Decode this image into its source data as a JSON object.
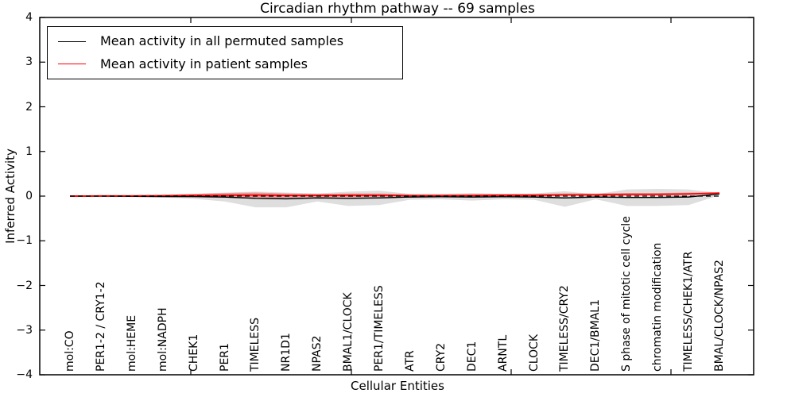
{
  "figure": {
    "title": "Circadian rhythm pathway -- 69 samples",
    "xlabel": "Cellular Entities",
    "ylabel": "Inferred Activity"
  },
  "legend": {
    "items": [
      {
        "label": "Mean activity in all permuted samples",
        "color": "#000000"
      },
      {
        "label": "Mean activity in patient samples",
        "color": "#ff0000"
      }
    ]
  },
  "chart_data": {
    "type": "line",
    "title": "Circadian rhythm pathway -- 69 samples",
    "xlabel": "Cellular Entities",
    "ylabel": "Inferred Activity",
    "ylim": [
      -4,
      4
    ],
    "grid": false,
    "legend_position": "upper left",
    "yticks": [
      {
        "value": 4,
        "label": "4"
      },
      {
        "value": 3,
        "label": "3"
      },
      {
        "value": 2,
        "label": "2"
      },
      {
        "value": 1,
        "label": "1"
      },
      {
        "value": 0,
        "label": "0"
      },
      {
        "value": -1,
        "label": "−1"
      },
      {
        "value": -2,
        "label": "−2"
      },
      {
        "value": -3,
        "label": "−3"
      },
      {
        "value": -4,
        "label": "−4"
      }
    ],
    "categories": [
      "mol:CO",
      "PER1-2 / CRY1-2",
      "mol:HEME",
      "mol:NADPH",
      "CHEK1",
      "PER1",
      "TIMELESS",
      "NR1D1",
      "NPAS2",
      "BMAL1/CLOCK",
      "PER1/TIMELESS",
      "ATR",
      "CRY2",
      "DEC1",
      "ARNTL",
      "CLOCK",
      "TIMELESS/CRY2",
      "DEC1/BMAL1",
      "S phase of mitotic cell cycle",
      "chromatin modification",
      "TIMELESS/CHEK1/ATR",
      "BMAL/CLOCK/NPAS2"
    ],
    "series": [
      {
        "name": "Mean activity in all permuted samples",
        "color": "#000000",
        "values": [
          0.0,
          0.0,
          -0.005,
          -0.01,
          -0.01,
          -0.02,
          -0.05,
          -0.06,
          -0.04,
          -0.05,
          -0.04,
          -0.02,
          -0.015,
          -0.02,
          -0.015,
          -0.02,
          -0.04,
          -0.02,
          -0.03,
          -0.03,
          -0.02,
          0.05
        ]
      },
      {
        "name": "Mean activity in patient samples",
        "color": "#ff0000",
        "values": [
          0.0,
          0.005,
          0.005,
          0.01,
          0.015,
          0.02,
          0.025,
          0.015,
          0.015,
          0.02,
          0.02,
          0.01,
          0.01,
          0.015,
          0.02,
          0.02,
          0.03,
          0.03,
          0.04,
          0.04,
          0.05,
          0.07
        ]
      }
    ],
    "bands": [
      {
        "name": "permuted-samples-range",
        "color": "#999999",
        "opacity": 0.32,
        "hi": [
          0.02,
          0.02,
          0.02,
          0.03,
          0.05,
          0.08,
          0.1,
          0.08,
          0.06,
          0.1,
          0.12,
          0.05,
          0.05,
          0.07,
          0.05,
          0.06,
          0.11,
          0.04,
          0.15,
          0.16,
          0.15,
          0.07
        ],
        "lo": [
          -0.02,
          -0.02,
          -0.02,
          -0.03,
          -0.06,
          -0.12,
          -0.25,
          -0.25,
          -0.12,
          -0.22,
          -0.2,
          -0.08,
          -0.07,
          -0.1,
          -0.07,
          -0.08,
          -0.24,
          -0.07,
          -0.22,
          -0.22,
          -0.2,
          0.02
        ]
      },
      {
        "name": "patient-samples-range",
        "color": "#ff0000",
        "opacity": 0.3,
        "hi": [
          0.01,
          0.02,
          0.02,
          0.03,
          0.05,
          0.07,
          0.08,
          0.06,
          0.05,
          0.06,
          0.06,
          0.04,
          0.04,
          0.04,
          0.05,
          0.05,
          0.06,
          0.06,
          0.07,
          0.07,
          0.08,
          0.08
        ],
        "lo": [
          -0.01,
          -0.01,
          -0.01,
          -0.02,
          -0.03,
          -0.04,
          -0.05,
          -0.04,
          -0.03,
          -0.03,
          -0.02,
          -0.02,
          -0.02,
          -0.02,
          -0.01,
          -0.01,
          0.0,
          0.0,
          0.01,
          0.01,
          0.02,
          0.06
        ]
      }
    ],
    "zero_line": 0
  }
}
